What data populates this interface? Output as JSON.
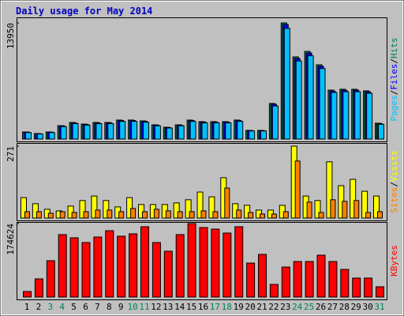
{
  "chart_data": [
    {
      "type": "bar",
      "title": "Daily usage for May 2014",
      "ylim": [
        0,
        13950
      ],
      "yticks": [
        13950
      ],
      "series": [
        {
          "name": "Hits",
          "color": "#00805c",
          "values": [
            850,
            660,
            850,
            1610,
            1990,
            1800,
            1990,
            1990,
            2280,
            2280,
            2180,
            1710,
            1420,
            1710,
            2280,
            2090,
            2090,
            2090,
            2280,
            1040,
            1040,
            4270,
            13950,
            9870,
            10530,
            8920,
            5880,
            5980,
            5980,
            5790,
            1900
          ]
        },
        {
          "name": "Files",
          "color": "#0000ff",
          "values": [
            830,
            640,
            830,
            1580,
            1950,
            1760,
            1950,
            1950,
            2230,
            2230,
            2130,
            1680,
            1390,
            1680,
            2230,
            2050,
            2050,
            2050,
            2230,
            1020,
            1020,
            4180,
            13760,
            9680,
            10330,
            8740,
            5760,
            5860,
            5860,
            5670,
            1860
          ]
        },
        {
          "name": "Pages",
          "color": "#00c0ff",
          "values": [
            780,
            600,
            780,
            1490,
            1850,
            1670,
            1850,
            1850,
            2120,
            2120,
            2020,
            1590,
            1320,
            1590,
            2120,
            1940,
            1940,
            1940,
            2120,
            970,
            970,
            3970,
            13300,
            9380,
            10000,
            8470,
            5590,
            5680,
            5680,
            5500,
            1770
          ]
        }
      ]
    },
    {
      "type": "bar",
      "ylim": [
        0,
        271
      ],
      "yticks": [
        271
      ],
      "series": [
        {
          "name": "Visits",
          "color": "#ffff00",
          "values": [
            77,
            54,
            33,
            27,
            45,
            66,
            83,
            66,
            42,
            77,
            51,
            51,
            51,
            57,
            69,
            98,
            80,
            152,
            54,
            48,
            30,
            30,
            48,
            271,
            83,
            66,
            212,
            122,
            146,
            101,
            83
          ]
        },
        {
          "name": "Sites",
          "color": "#ff8000",
          "values": [
            24,
            24,
            18,
            24,
            21,
            24,
            30,
            30,
            24,
            36,
            24,
            33,
            27,
            24,
            24,
            27,
            24,
            113,
            30,
            21,
            15,
            15,
            24,
            215,
            60,
            21,
            69,
            63,
            66,
            21,
            24
          ]
        }
      ]
    },
    {
      "type": "bar",
      "ylim": [
        0,
        174624
      ],
      "yticks": [
        174624
      ],
      "categories": [
        "1",
        "2",
        "3",
        "4",
        "5",
        "6",
        "7",
        "8",
        "9",
        "10",
        "11",
        "12",
        "13",
        "14",
        "15",
        "16",
        "17",
        "18",
        "19",
        "20",
        "21",
        "22",
        "23",
        "24",
        "25",
        "26",
        "27",
        "28",
        "29",
        "30",
        "31"
      ],
      "category_colors": [
        "#000000",
        "#000000",
        "#00805c",
        "#00805c",
        "#000000",
        "#000000",
        "#000000",
        "#000000",
        "#000000",
        "#00805c",
        "#00805c",
        "#000000",
        "#000000",
        "#000000",
        "#000000",
        "#000000",
        "#00805c",
        "#00805c",
        "#000000",
        "#000000",
        "#000000",
        "#000000",
        "#000000",
        "#00805c",
        "#00805c",
        "#000000",
        "#000000",
        "#000000",
        "#000000",
        "#000000",
        "#00805c"
      ],
      "series": [
        {
          "name": "KBytes",
          "color": "#ff0000",
          "values": [
            13150,
            43200,
            86400,
            148400,
            140850,
            129600,
            142700,
            157750,
            144600,
            150250,
            167150,
            129600,
            108900,
            148400,
            174624,
            165250,
            161500,
            152100,
            167150,
            80750,
            101400,
            30050,
            71350,
            84500,
            84500,
            99550,
            84500,
            65700,
            45100,
            45100,
            24400
          ]
        }
      ]
    }
  ]
}
